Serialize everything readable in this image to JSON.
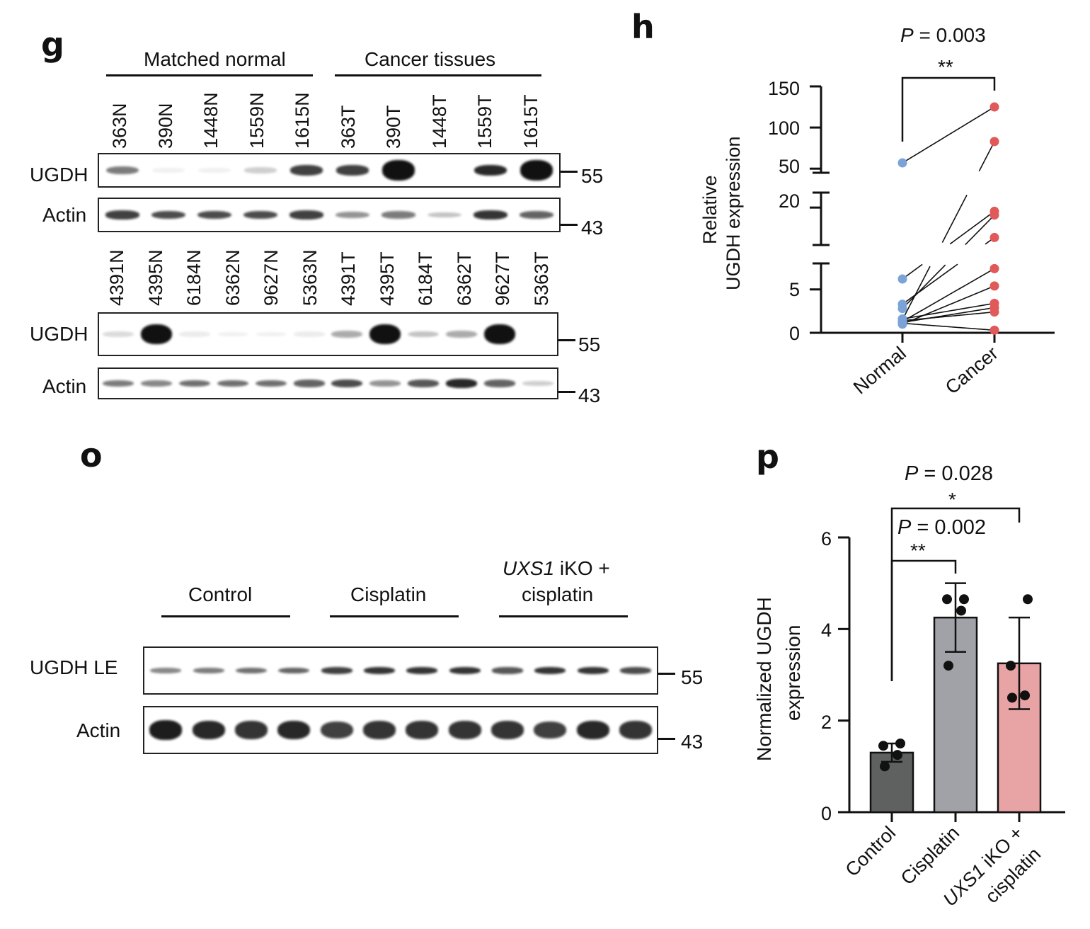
{
  "panel_g": {
    "letter": "g",
    "group_labels": [
      "Matched normal",
      "Cancer tissues"
    ],
    "row1_lanes": [
      "363N",
      "390N",
      "1448N",
      "1559N",
      "1615N",
      "363T",
      "390T",
      "1448T",
      "1559T",
      "1615T"
    ],
    "row2_lanes": [
      "4391N",
      "4395N",
      "6184N",
      "6362N",
      "9627N",
      "5363N",
      "4391T",
      "4395T",
      "6184T",
      "6362T",
      "9627T",
      "5363T"
    ],
    "row_labels": [
      "UGDH",
      "Actin",
      "UGDH",
      "Actin"
    ],
    "mw": [
      "55",
      "43",
      "55",
      "43"
    ],
    "row1_ugdh_intensity": [
      0.55,
      0.06,
      0.05,
      0.2,
      0.8,
      0.8,
      1.0,
      0.0,
      0.9,
      1.0
    ],
    "row1_actin_intensity": [
      0.8,
      0.75,
      0.75,
      0.75,
      0.8,
      0.45,
      0.55,
      0.25,
      0.85,
      0.65
    ],
    "row2_ugdh_intensity": [
      0.15,
      1.0,
      0.08,
      0.05,
      0.03,
      0.08,
      0.35,
      1.0,
      0.25,
      0.35,
      1.0,
      0.0
    ],
    "row2_actin_intensity": [
      0.55,
      0.5,
      0.6,
      0.6,
      0.6,
      0.65,
      0.75,
      0.45,
      0.7,
      0.9,
      0.65,
      0.2
    ]
  },
  "panel_h": {
    "letter": "h",
    "p_label": "P",
    "p_value": " = 0.003",
    "significance": "**",
    "ylabel_line1": "Relative",
    "ylabel_line2": "UGDH expression",
    "y_ticks": [
      "150",
      "100",
      "50",
      "20",
      "5",
      "0"
    ],
    "x_categories": [
      "Normal",
      "Cancer"
    ],
    "colors": {
      "normal": "#7ba3d8",
      "cancer": "#e05a5a"
    }
  },
  "panel_o": {
    "letter": "o",
    "group_labels": [
      "Control",
      "Cisplatin"
    ],
    "group3_italic": "UXS1",
    "group3_rest": " iKO +",
    "group3_line2": "cisplatin",
    "row_labels": [
      "UGDH LE",
      "Actin"
    ],
    "mw": [
      "55",
      "43"
    ],
    "ugdh_intensity": [
      0.5,
      0.55,
      0.6,
      0.65,
      0.8,
      0.85,
      0.85,
      0.85,
      0.7,
      0.85,
      0.85,
      0.75
    ],
    "actin_intensity": [
      0.95,
      0.9,
      0.85,
      0.9,
      0.8,
      0.85,
      0.85,
      0.85,
      0.85,
      0.8,
      0.9,
      0.85
    ]
  },
  "panel_p": {
    "letter": "p",
    "p1_label": "P",
    "p1_value": " = 0.028",
    "sig1": "*",
    "p2_label": "P",
    "p2_value": " = 0.002",
    "sig2": "**",
    "ylabel_line1": "Normalized UGDH",
    "ylabel_line2": "expression",
    "y_ticks": [
      "0",
      "2",
      "4",
      "6"
    ],
    "x_cat1": "Control",
    "x_cat2": "Cisplatin",
    "x_cat3_italic": "UXS1",
    "x_cat3_rest": " iKO +",
    "x_cat3_line2": "cisplatin",
    "colors": {
      "control": "#5e615f",
      "cisplatin": "#a1a2a7",
      "uxs1": "#e8a3a4"
    }
  },
  "chart_data": [
    {
      "type": "scatter",
      "panel": "h",
      "ylabel": "Relative UGDH expression",
      "categories": [
        "Normal",
        "Cancer"
      ],
      "axis_breaks": [
        [
          8,
          15
        ],
        [
          25,
          45
        ]
      ],
      "y_segments": [
        [
          0,
          8
        ],
        [
          15,
          22
        ],
        [
          45,
          150
        ]
      ],
      "pairs": [
        [
          57,
          125
        ],
        [
          1.5,
          83
        ],
        [
          6.2,
          19.5
        ],
        [
          3.3,
          16
        ],
        [
          2.8,
          19
        ],
        [
          1.3,
          7.4
        ],
        [
          1.0,
          5.4
        ],
        [
          1.6,
          3.4
        ],
        [
          1.2,
          2.9
        ],
        [
          1.4,
          2.4
        ],
        [
          1.1,
          0.3
        ]
      ],
      "annotation": "P = 0.003 **"
    },
    {
      "type": "bar",
      "panel": "p",
      "ylabel": "Normalized UGDH expression",
      "categories": [
        "Control",
        "Cisplatin",
        "UXS1 iKO + cisplatin"
      ],
      "values": [
        1.3,
        4.25,
        3.25
      ],
      "error": [
        0.2,
        0.75,
        1.0
      ],
      "points": [
        [
          1.0,
          1.25,
          1.45,
          1.5
        ],
        [
          3.2,
          4.4,
          4.65,
          4.65
        ],
        [
          2.5,
          2.55,
          3.2,
          4.65
        ]
      ],
      "ylim": [
        0,
        6
      ],
      "annotations": [
        "P = 0.028 *",
        "P = 0.002 **"
      ]
    }
  ]
}
